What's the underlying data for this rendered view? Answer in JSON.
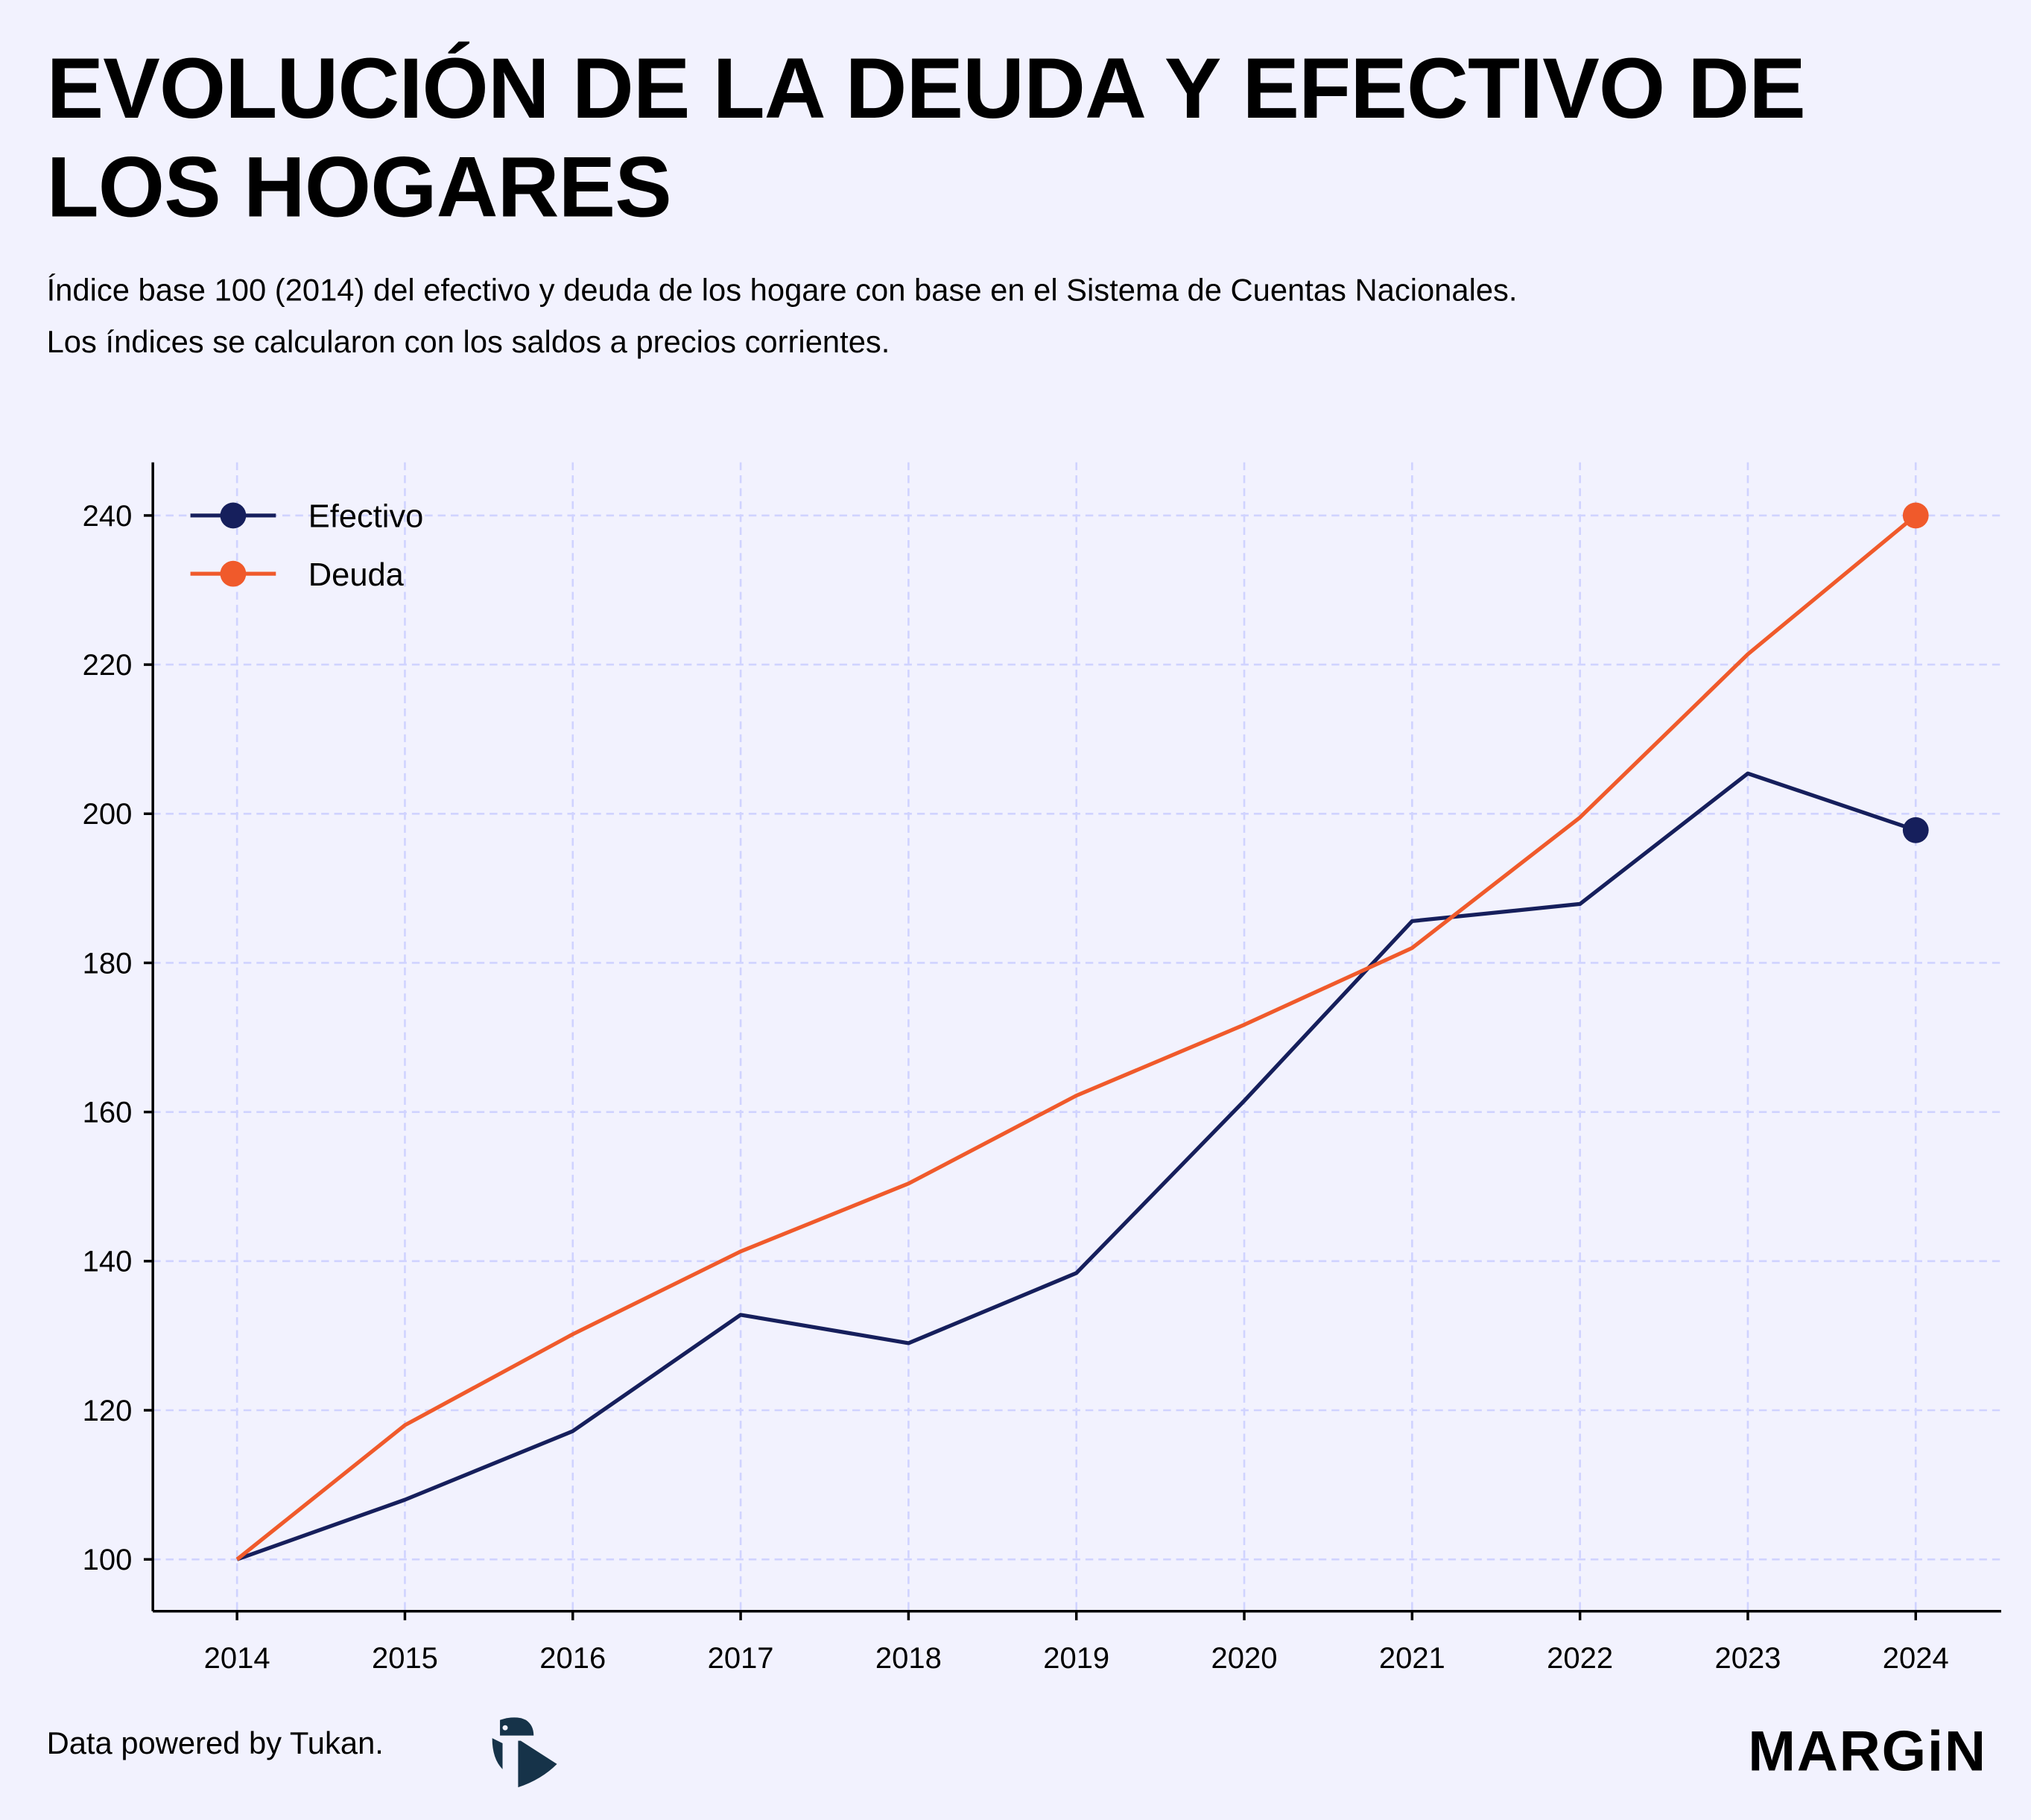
{
  "header": {
    "title": "EVOLUCIÓN DE LA DEUDA Y EFECTIVO DE LOS HOGARES",
    "subtitle_line1": "Índice base 100 (2014) del efectivo y deuda de los hogare con base en el Sistema de Cuentas Nacionales.",
    "subtitle_line2": "Los índices se calcularon con los saldos a precios corrientes."
  },
  "footer": {
    "credit": "Data powered by Tukan.",
    "brand": "MARGiN"
  },
  "colors": {
    "efectivo": "#161f5c",
    "deuda": "#f05a2b",
    "grid": "#d0d3ff",
    "background": "#f2f2fe"
  },
  "chart_data": {
    "type": "line",
    "title": "EVOLUCIÓN DE LA DEUDA Y EFECTIVO DE LOS HOGARES",
    "xlabel": "",
    "ylabel": "",
    "x": [
      2014,
      2015,
      2016,
      2017,
      2018,
      2019,
      2020,
      2021,
      2022,
      2023,
      2024
    ],
    "x_tick_labels": [
      "2014",
      "2015",
      "2016",
      "2017",
      "2018",
      "2019",
      "2020",
      "2021",
      "2022",
      "2023",
      "2024"
    ],
    "y_ticks": [
      100,
      120,
      140,
      160,
      180,
      200,
      220,
      240
    ],
    "y_tick_labels": [
      "100",
      "120",
      "140",
      "160",
      "180",
      "200",
      "220",
      "240"
    ],
    "ylim": [
      93,
      247
    ],
    "xlim": [
      2013.5,
      2024.5
    ],
    "grid": true,
    "legend_position": "top-left",
    "series": [
      {
        "name": "Efectivo",
        "values": [
          100,
          108,
          117.2,
          132.8,
          129,
          138.4,
          161.5,
          185.6,
          187.9,
          205.4,
          197.8
        ]
      },
      {
        "name": "Deuda",
        "values": [
          100,
          118,
          130.2,
          141.3,
          150.4,
          162.2,
          171.7,
          182,
          199.5,
          221.4,
          240
        ]
      }
    ]
  }
}
